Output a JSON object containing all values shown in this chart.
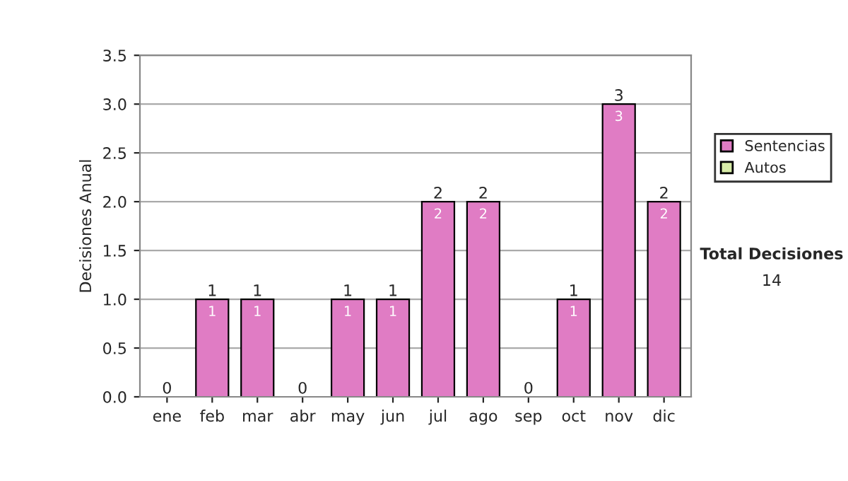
{
  "chart_data": {
    "type": "bar",
    "stacked": true,
    "ylabel": "Decisiones Anual",
    "categories": [
      "ene",
      "feb",
      "mar",
      "abr",
      "may",
      "jun",
      "jul",
      "ago",
      "sep",
      "oct",
      "nov",
      "dic"
    ],
    "series": [
      {
        "name": "Sentencias",
        "color": "#e07cc4",
        "values": [
          0,
          1,
          1,
          0,
          1,
          1,
          2,
          2,
          0,
          1,
          3,
          2
        ],
        "value_labels": [
          null,
          "1",
          "1",
          null,
          "1",
          "1",
          "2",
          "2",
          null,
          "1",
          "3",
          "2"
        ]
      },
      {
        "name": "Autos",
        "color": "#d8eca8",
        "values": [
          0,
          0,
          0,
          0,
          0,
          0,
          0,
          0,
          0,
          0,
          0,
          0
        ]
      }
    ],
    "totals": [
      "0",
      "1",
      "1",
      "0",
      "1",
      "1",
      "2",
      "2",
      "0",
      "1",
      "3",
      "2"
    ],
    "ylim": [
      0,
      3.5
    ],
    "yticks": [
      {
        "value": 0,
        "label": "0.0"
      },
      {
        "value": 0.5,
        "label": "0.5"
      },
      {
        "value": 1,
        "label": "1.0"
      },
      {
        "value": 1.5,
        "label": "1.5"
      },
      {
        "value": 2,
        "label": "2.0"
      },
      {
        "value": 2.5,
        "label": "2.5"
      },
      {
        "value": 3,
        "label": "3.0"
      },
      {
        "value": 3.5,
        "label": "3.5"
      }
    ],
    "grid": "y",
    "legend": "right",
    "annotations": [
      "Total Decisiones",
      "14"
    ]
  }
}
